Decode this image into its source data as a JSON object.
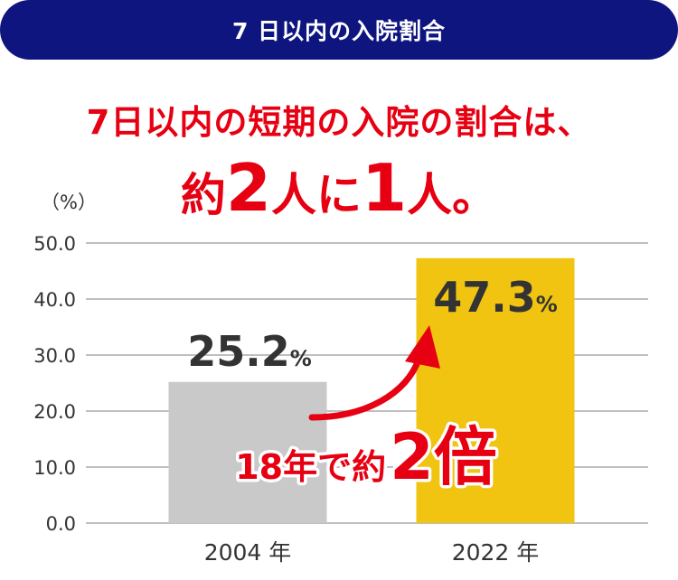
{
  "header": {
    "title": "7 日以内の入院割合"
  },
  "headline": {
    "line1": "7日以内の短期の入院の割合は、",
    "line2": [
      {
        "text": "約",
        "size": "small"
      },
      {
        "text": "2",
        "size": "big"
      },
      {
        "text": "人に",
        "size": "small"
      },
      {
        "text": "1",
        "size": "big"
      },
      {
        "text": "人。",
        "size": "small"
      }
    ]
  },
  "colors": {
    "header_bg": "#0f157f",
    "accent_red": "#e60012",
    "bar_2004": "#c9c9c9",
    "bar_2022": "#f0c411",
    "label_dark": "#333333"
  },
  "chart_data": {
    "type": "bar",
    "categories": [
      "2004 年",
      "2022 年"
    ],
    "values": [
      25.2,
      47.3
    ],
    "value_labels": [
      "25.2",
      "47.3"
    ],
    "value_unit": "%",
    "ylabel": "（%）",
    "ylim": [
      0,
      50
    ],
    "yticks": [
      "0.0",
      "10.0",
      "20.0",
      "30.0",
      "40.0",
      "50.0"
    ],
    "grid": true,
    "annotation": {
      "text": "18年で約",
      "highlight": "2倍"
    }
  }
}
